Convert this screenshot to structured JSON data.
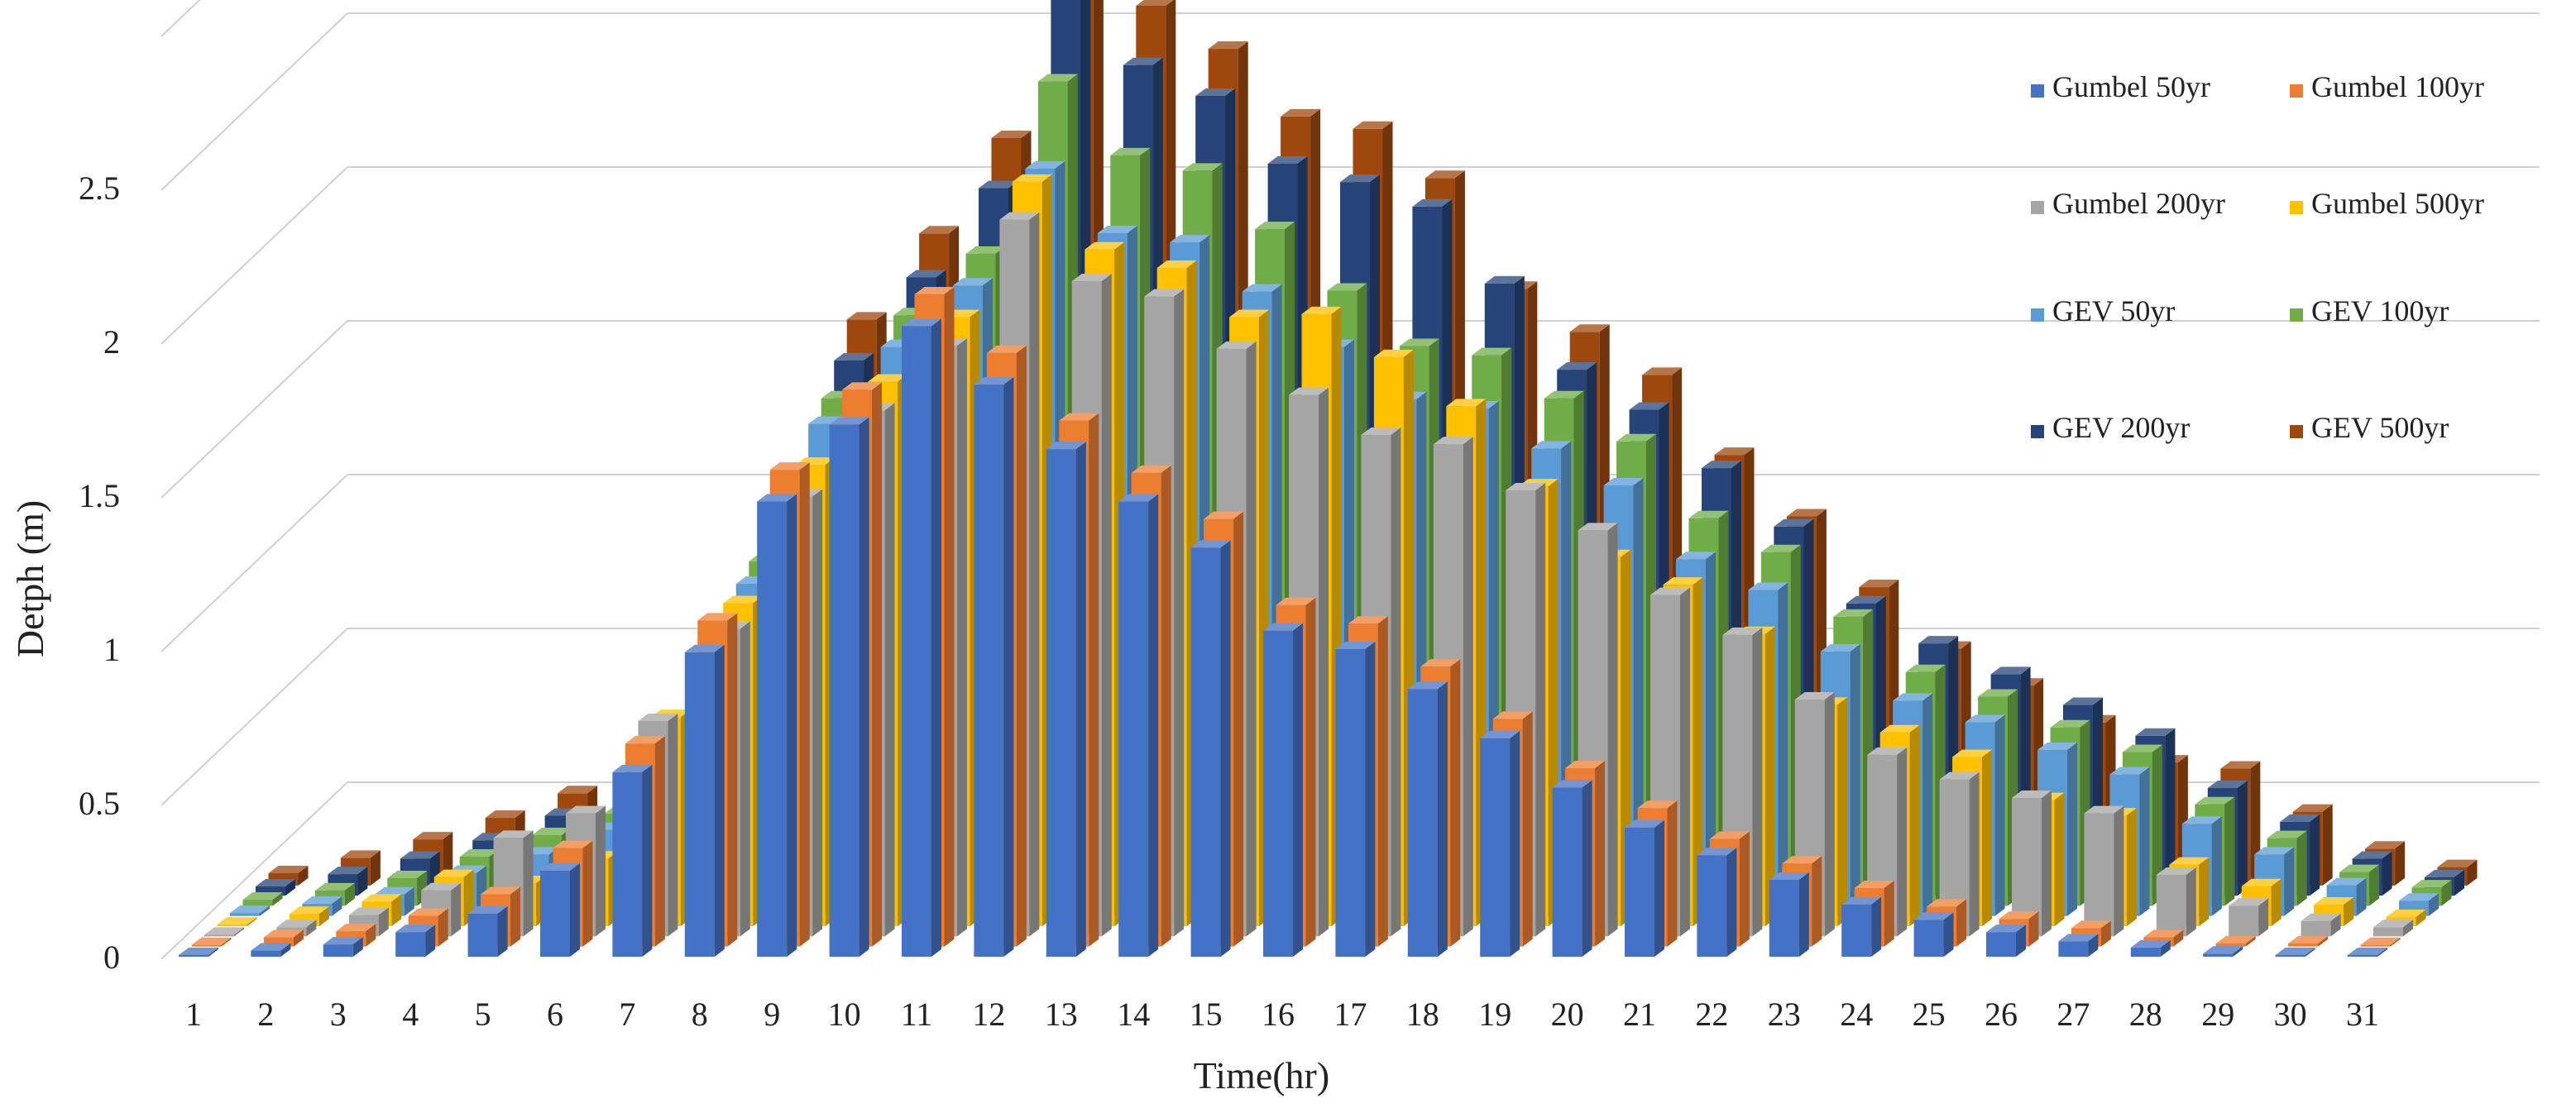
{
  "chart_data": {
    "type": "bar",
    "subtype": "3d-clustered-depth",
    "title": "",
    "xlabel": "Time(hr)",
    "ylabel": "Detph (m)",
    "ylim": [
      0,
      3
    ],
    "yticks": [
      "0",
      "0.5",
      "1",
      "1.5",
      "2",
      "2.5"
    ],
    "grid": true,
    "legend_position": "top-right",
    "categories": [
      "1",
      "2",
      "3",
      "4",
      "5",
      "6",
      "7",
      "8",
      "9",
      "10",
      "11",
      "12",
      "13",
      "14",
      "15",
      "16",
      "17",
      "18",
      "19",
      "20",
      "21",
      "22",
      "23",
      "24",
      "25",
      "26",
      "27",
      "28",
      "29",
      "30",
      "31"
    ],
    "series": [
      {
        "name": "Gumbel 50yr",
        "color": "#4472C4",
        "values": [
          0,
          0.02,
          0.04,
          0.08,
          0.14,
          0.28,
          0.6,
          0.99,
          1.48,
          1.73,
          2.05,
          1.86,
          1.65,
          1.48,
          1.33,
          1.06,
          1.0,
          0.87,
          0.71,
          0.55,
          0.42,
          0.33,
          0.25,
          0.17,
          0.12,
          0.08,
          0.05,
          0.03,
          0.01,
          0,
          0
        ]
      },
      {
        "name": "Gumbel 100yr",
        "color": "#ED7D31",
        "values": [
          0,
          0.03,
          0.05,
          0.1,
          0.17,
          0.32,
          0.66,
          1.06,
          1.55,
          1.81,
          2.12,
          1.93,
          1.71,
          1.54,
          1.39,
          1.11,
          1.05,
          0.91,
          0.74,
          0.58,
          0.45,
          0.35,
          0.27,
          0.19,
          0.13,
          0.09,
          0.06,
          0.03,
          0.01,
          0.01,
          0
        ]
      },
      {
        "name": "Gumbel 200yr",
        "color": "#A5A5A5",
        "values": [
          0,
          0.03,
          0.07,
          0.15,
          0.32,
          0.4,
          0.7,
          1.0,
          1.43,
          1.71,
          1.92,
          2.33,
          2.13,
          2.08,
          1.91,
          1.76,
          1.63,
          1.6,
          1.45,
          1.32,
          1.11,
          0.98,
          0.77,
          0.59,
          0.51,
          0.45,
          0.4,
          0.2,
          0.1,
          0.05,
          0.03
        ]
      },
      {
        "name": "Gumbel 500yr",
        "color": "#FFC000",
        "values": [
          0,
          0.04,
          0.08,
          0.16,
          0.14,
          0.22,
          0.68,
          1.05,
          1.5,
          1.77,
          1.98,
          2.42,
          2.2,
          2.14,
          1.98,
          1.99,
          1.85,
          1.69,
          1.43,
          1.2,
          1.11,
          0.95,
          0.72,
          0.63,
          0.55,
          0.41,
          0.36,
          0.2,
          0.13,
          0.07,
          0.03
        ]
      },
      {
        "name": "GEV 50yr",
        "color": "#5B9BD5",
        "values": [
          0.01,
          0.04,
          0.07,
          0.14,
          0.2,
          0.28,
          0.55,
          1.08,
          1.6,
          1.85,
          2.05,
          2.43,
          2.22,
          2.19,
          2.03,
          1.85,
          1.68,
          1.65,
          1.52,
          1.4,
          1.16,
          1.06,
          0.86,
          0.7,
          0.63,
          0.54,
          0.46,
          0.3,
          0.2,
          0.1,
          0.05
        ]
      },
      {
        "name": "GEV 100yr",
        "color": "#70AD47",
        "values": [
          0.02,
          0.05,
          0.09,
          0.16,
          0.23,
          0.3,
          0.6,
          1.12,
          1.65,
          1.92,
          2.12,
          2.68,
          2.44,
          2.39,
          2.2,
          2.0,
          1.82,
          1.79,
          1.65,
          1.51,
          1.26,
          1.15,
          0.94,
          0.76,
          0.68,
          0.58,
          0.5,
          0.33,
          0.22,
          0.11,
          0.06
        ]
      },
      {
        "name": "GEV 200yr",
        "color": "#264478",
        "values": [
          0.03,
          0.07,
          0.12,
          0.18,
          0.26,
          0.34,
          0.68,
          1.2,
          1.74,
          2.01,
          2.3,
          2.92,
          2.7,
          2.6,
          2.38,
          2.32,
          2.24,
          1.99,
          1.71,
          1.58,
          1.39,
          1.2,
          0.95,
          0.82,
          0.72,
          0.62,
          0.52,
          0.35,
          0.24,
          0.12,
          0.06
        ]
      },
      {
        "name": "GEV 500yr",
        "color": "#9E480E",
        "values": [
          0.04,
          0.09,
          0.15,
          0.22,
          0.3,
          0.38,
          0.74,
          1.28,
          1.84,
          2.12,
          2.43,
          3.05,
          2.86,
          2.72,
          2.5,
          2.46,
          2.3,
          1.94,
          1.8,
          1.66,
          1.4,
          1.2,
          0.97,
          0.77,
          0.65,
          0.53,
          0.4,
          0.38,
          0.24,
          0.12,
          0.06
        ]
      }
    ]
  }
}
